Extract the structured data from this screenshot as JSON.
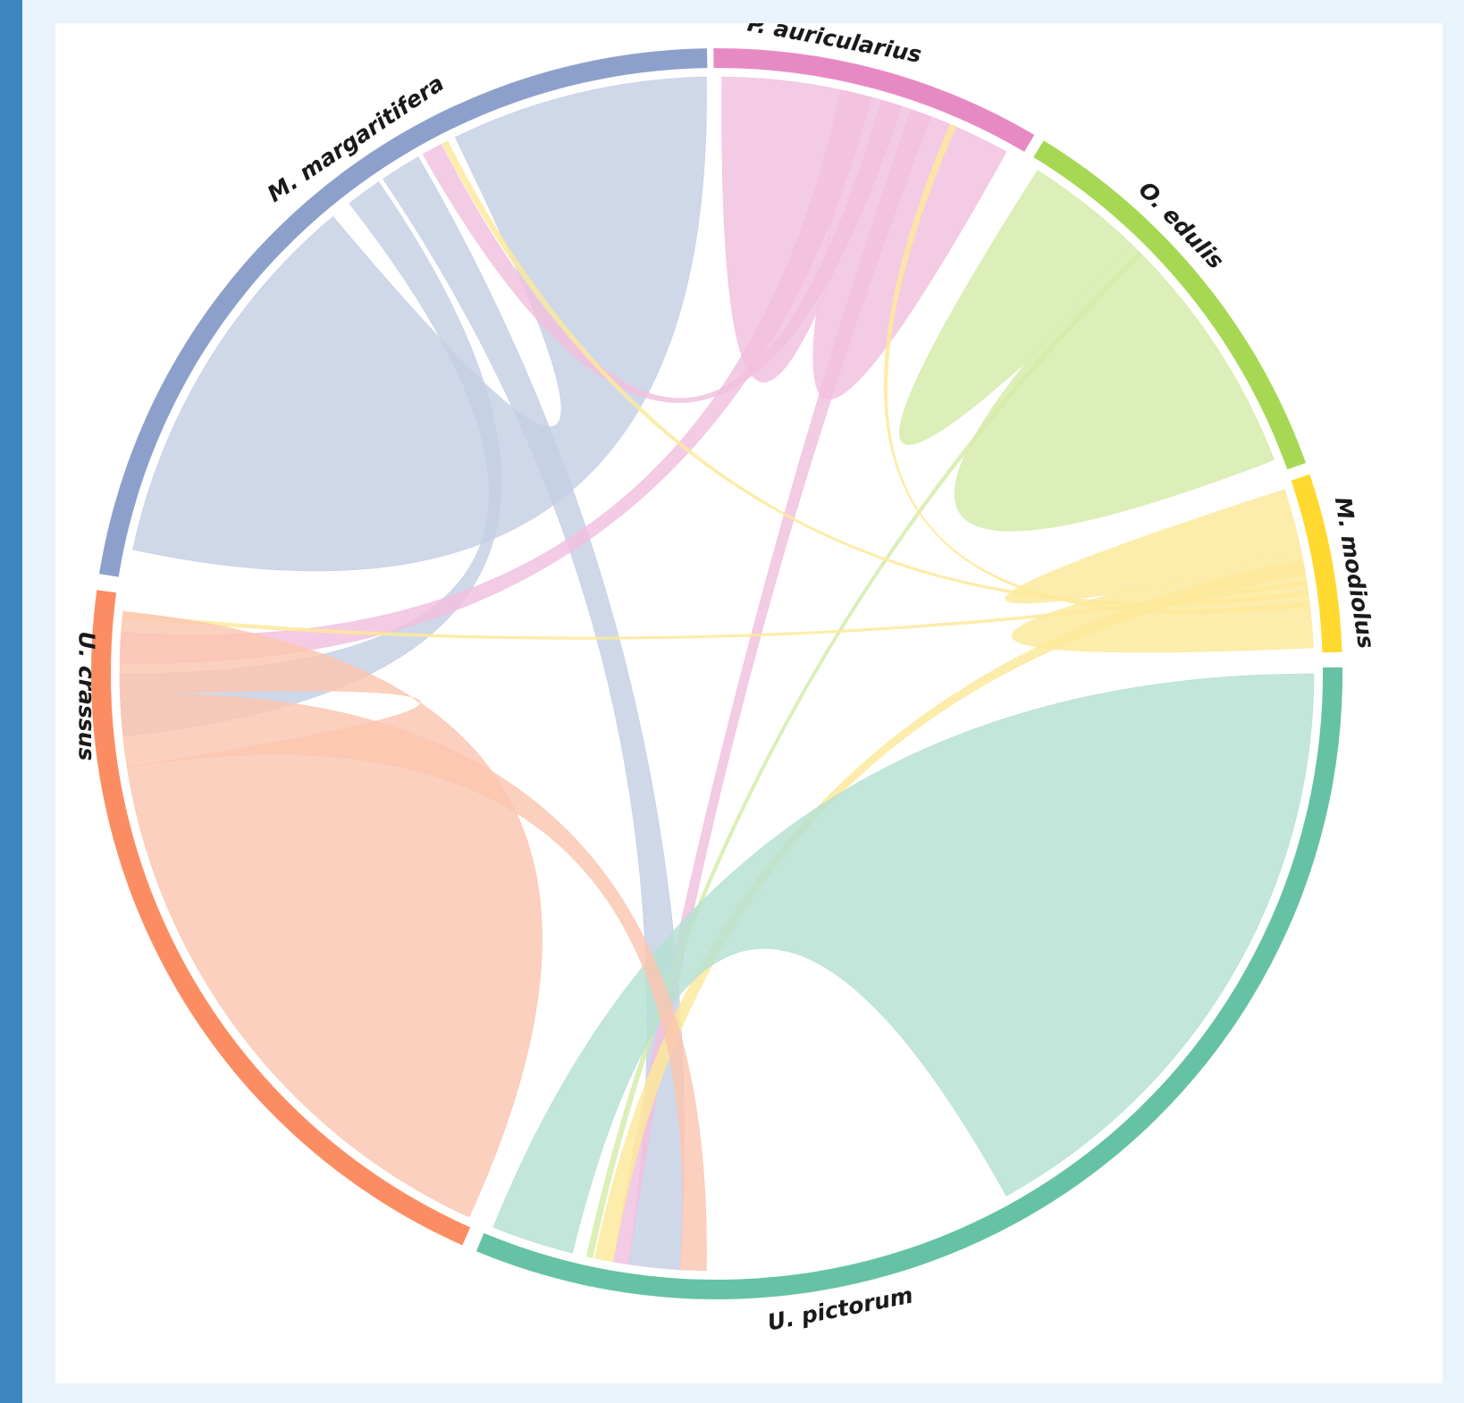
{
  "nodes": [
    {
      "id": "p_auricularius",
      "label": "P. auricularius",
      "color": "#e78ac3",
      "ribbon": "#f1bfde"
    },
    {
      "id": "o_edulis",
      "label": "O. edulis",
      "color": "#a6d854",
      "ribbon": "#d5ebaa"
    },
    {
      "id": "m_modiolus",
      "label": "M. modiolus",
      "color": "#ffd92f",
      "ribbon": "#fde99a"
    },
    {
      "id": "u_pictorum",
      "label": "U. pictorum",
      "color": "#66c2a5",
      "ribbon": "#b4e0d2"
    },
    {
      "id": "u_crassus",
      "label": "U. crassus",
      "color": "#fc8d62",
      "ribbon": "#fbc6b0"
    },
    {
      "id": "m_margaritifera",
      "label": "M. margaritifera",
      "color": "#8da0cb",
      "ribbon": "#c5cfe4"
    }
  ]
}
